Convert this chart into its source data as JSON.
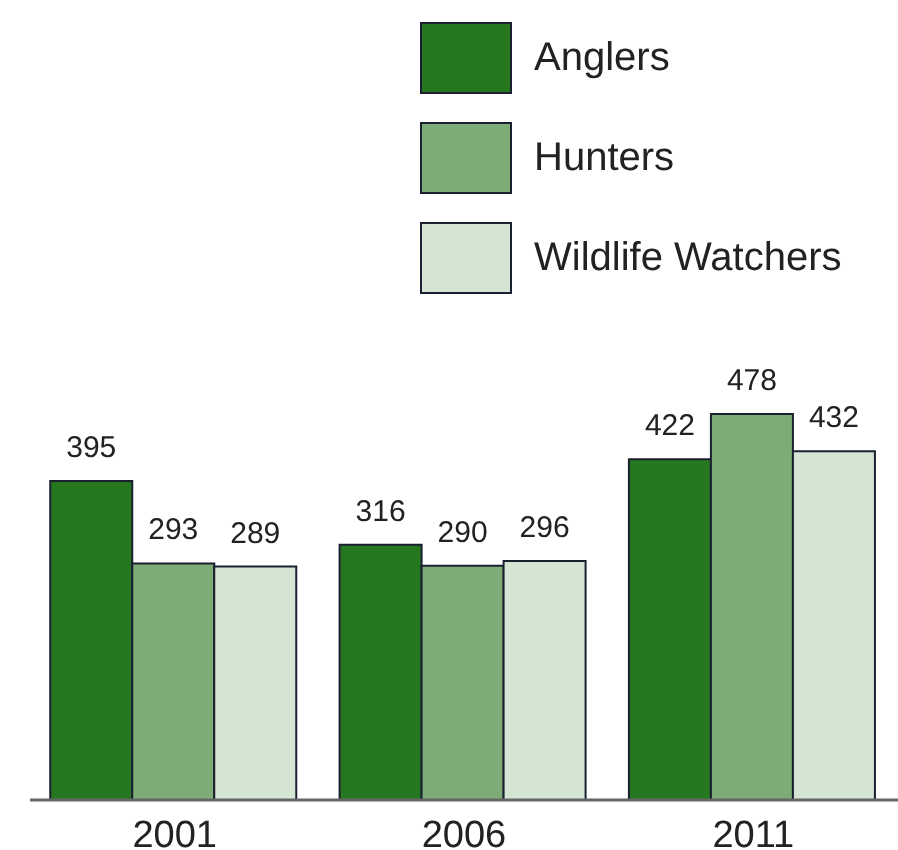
{
  "chart_data": {
    "type": "bar",
    "categories": [
      "2001",
      "2006",
      "2011"
    ],
    "series": [
      {
        "name": "Anglers",
        "color": "#267820",
        "values": [
          395,
          316,
          422
        ]
      },
      {
        "name": "Hunters",
        "color": "#7dac77",
        "values": [
          293,
          290,
          478
        ]
      },
      {
        "name": "Wildlife Watchers",
        "color": "#d5e5d4",
        "values": [
          289,
          296,
          432
        ]
      }
    ],
    "data_labels": true,
    "legend": "top right"
  }
}
